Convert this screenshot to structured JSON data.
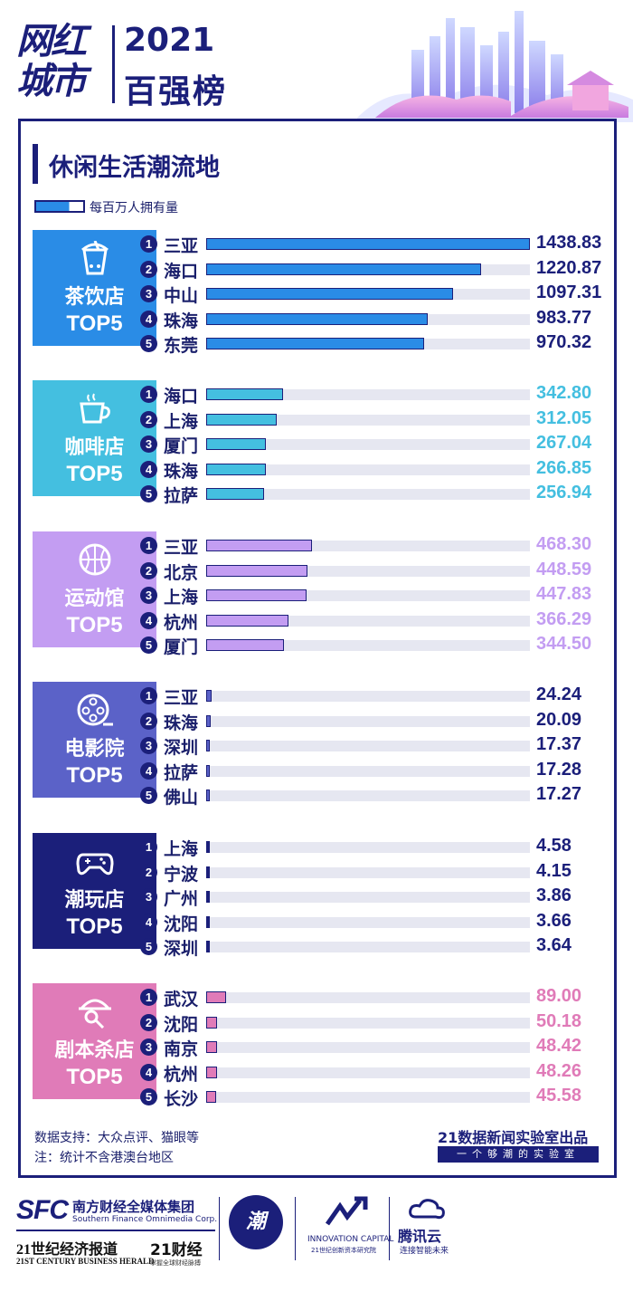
{
  "header": {
    "logo_text_line1": "网红",
    "logo_text_line2": "城市",
    "year": "2021",
    "subtitle": "百强榜"
  },
  "section": {
    "title": "休闲生活潮流地",
    "legend_label": "每百万人拥有量"
  },
  "chart_data": {
    "type": "bar",
    "orientation": "horizontal",
    "title": "休闲生活潮流地",
    "legend": [
      "每百万人拥有量"
    ],
    "colors": {
      "tea": "#2a8ce6",
      "coffee": "#44bfe0",
      "sports": "#c39df2",
      "cinema": "#5b62c8",
      "toys": "#1b1f7a",
      "murder": "#e07bb8"
    },
    "groups": [
      {
        "key": "tea",
        "name": "茶饮店",
        "badge": "TOP5",
        "icon": "bubble-tea-icon",
        "tile_color": "#2a8ce6",
        "bar_color": "#2a8ce6",
        "value_color": "#1b1f7a",
        "max": 1438.83,
        "cities": [
          "三亚",
          "海口",
          "中山",
          "珠海",
          "东莞"
        ],
        "values": [
          1438.83,
          1220.87,
          1097.31,
          983.77,
          970.32
        ],
        "labels": [
          "1438.83",
          "1220.87",
          "1097.31",
          "983.77",
          "970.32"
        ]
      },
      {
        "key": "coffee",
        "name": "咖啡店",
        "badge": "TOP5",
        "icon": "coffee-cup-icon",
        "tile_color": "#44bfe0",
        "bar_color": "#44bfe0",
        "value_color": "#44bfe0",
        "max": 1438.83,
        "cities": [
          "海口",
          "上海",
          "厦门",
          "珠海",
          "拉萨"
        ],
        "values": [
          342.8,
          312.05,
          267.04,
          266.85,
          256.94
        ],
        "labels": [
          "342.80",
          "312.05",
          "267.04",
          "266.85",
          "256.94"
        ]
      },
      {
        "key": "sports",
        "name": "运动馆",
        "badge": "TOP5",
        "icon": "basketball-icon",
        "tile_color": "#c39df2",
        "bar_color": "#c39df2",
        "value_color": "#c39df2",
        "max": 1438.83,
        "cities": [
          "三亚",
          "北京",
          "上海",
          "杭州",
          "厦门"
        ],
        "values": [
          468.3,
          448.59,
          447.83,
          366.29,
          344.5
        ],
        "labels": [
          "468.30",
          "448.59",
          "447.83",
          "366.29",
          "344.50"
        ]
      },
      {
        "key": "cinema",
        "name": "电影院",
        "badge": "TOP5",
        "icon": "film-reel-icon",
        "tile_color": "#5b62c8",
        "bar_color": "#5b62c8",
        "value_color": "#1b1f7a",
        "max": 1438.83,
        "cities": [
          "三亚",
          "珠海",
          "深圳",
          "拉萨",
          "佛山"
        ],
        "values": [
          24.24,
          20.09,
          17.37,
          17.28,
          17.27
        ],
        "labels": [
          "24.24",
          "20.09",
          "17.37",
          "17.28",
          "17.27"
        ]
      },
      {
        "key": "toys",
        "name": "潮玩店",
        "badge": "TOP5",
        "icon": "gamepad-icon",
        "tile_color": "#1b1f7a",
        "bar_color": "#1b1f7a",
        "value_color": "#1b1f7a",
        "max": 1438.83,
        "cities": [
          "上海",
          "宁波",
          "广州",
          "沈阳",
          "深圳"
        ],
        "values": [
          4.58,
          4.15,
          3.86,
          3.66,
          3.64
        ],
        "labels": [
          "4.58",
          "4.15",
          "3.86",
          "3.66",
          "3.64"
        ]
      },
      {
        "key": "murder",
        "name": "剧本杀店",
        "badge": "TOP5",
        "icon": "detective-icon",
        "tile_color": "#e07bb8",
        "bar_color": "#e07bb8",
        "value_color": "#e07bb8",
        "max": 1438.83,
        "cities": [
          "武汉",
          "沈阳",
          "南京",
          "杭州",
          "长沙"
        ],
        "values": [
          89.0,
          50.18,
          48.42,
          48.26,
          45.58
        ],
        "labels": [
          "89.00",
          "50.18",
          "48.42",
          "48.26",
          "45.58"
        ]
      }
    ]
  },
  "footer": {
    "note1": "数据支持：大众点评、猫眼等",
    "note2": "注：统计不含港澳台地区",
    "producer": "21数据新闻实验室出品",
    "slogan": "一个够潮的实验室"
  },
  "brands": {
    "sfc": "SFC",
    "sfc_cn": "南方财经全媒体集团",
    "sfc_en": "Southern Finance Omnimedia Corp.",
    "herald_cn": "21世纪经济报道",
    "herald_en": "21ST CENTURY BUSINESS HERALD",
    "cj21": "21财经",
    "cj21_sub": "掌握全球财经脉搏",
    "chao": "潮",
    "innov_en": "INNOVATION CAPITAL",
    "innov_cn": "21世纪创新资本研究院",
    "tencent": "腾讯云",
    "tencent_sub": "连接智能未来"
  }
}
